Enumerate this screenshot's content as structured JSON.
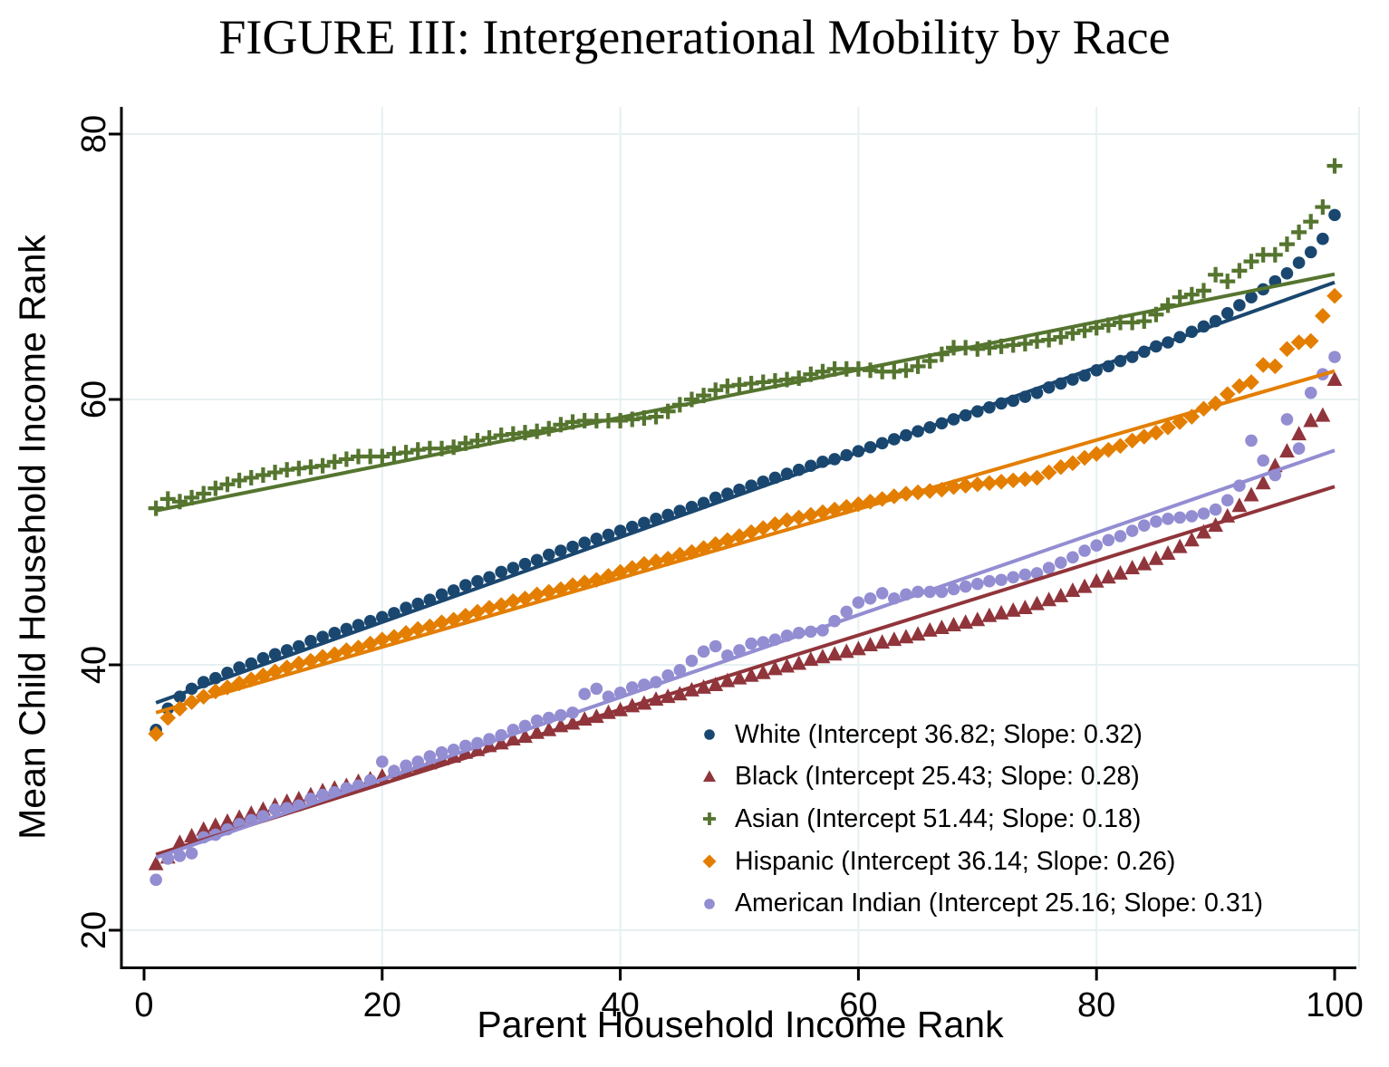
{
  "title": "FIGURE III: Intergenerational Mobility by Race",
  "axes": {
    "x_label": "Parent Household Income Rank",
    "y_label": "Mean Child Household Income Rank",
    "x_ticks": [
      0,
      20,
      40,
      60,
      80,
      100
    ],
    "y_ticks": [
      20,
      40,
      60,
      80
    ]
  },
  "colors": {
    "background": "#ffffff",
    "grid": "#e6f0f1",
    "axis": "#000000",
    "text": "#000000",
    "white_series": "#1a476f",
    "black_series": "#90353b",
    "asian_series": "#55752f",
    "hispanic_series": "#e37e00",
    "american_indian_series": "#938dd2"
  },
  "legend": {
    "position": "inside-bottom-right",
    "frame": false
  },
  "chart_data": {
    "type": "scatter",
    "title": "FIGURE III: Intergenerational Mobility by Race",
    "xlabel": "Parent Household Income Rank",
    "ylabel": "Mean Child Household Income Rank",
    "xlim": [
      -2,
      102.5
    ],
    "ylim": [
      17.5,
      82
    ],
    "grid": true,
    "x_min": 1,
    "x_max": 100,
    "x_step": 1,
    "series": [
      {
        "name": "White",
        "legend_label": "White (Intercept 36.82; Slope: 0.32)",
        "marker": "circle",
        "color": "#1a476f",
        "intercept": 36.82,
        "slope": 0.32,
        "values": [
          35.1,
          36.7,
          37.6,
          38.2,
          38.7,
          39.0,
          39.4,
          39.8,
          40.1,
          40.5,
          40.8,
          41.1,
          41.4,
          41.8,
          42.1,
          42.4,
          42.7,
          43.0,
          43.3,
          43.6,
          43.9,
          44.3,
          44.6,
          44.9,
          45.3,
          45.6,
          46.0,
          46.3,
          46.6,
          47.0,
          47.3,
          47.6,
          47.9,
          48.3,
          48.6,
          48.9,
          49.2,
          49.5,
          49.8,
          50.1,
          50.4,
          50.7,
          51.0,
          51.3,
          51.6,
          51.9,
          52.2,
          52.6,
          52.9,
          53.2,
          53.5,
          53.8,
          54.1,
          54.4,
          54.7,
          55.0,
          55.3,
          55.5,
          55.8,
          56.1,
          56.4,
          56.7,
          57.0,
          57.3,
          57.6,
          57.9,
          58.2,
          58.5,
          58.8,
          59.1,
          59.4,
          59.7,
          59.9,
          60.2,
          60.5,
          60.9,
          61.2,
          61.5,
          61.8,
          62.2,
          62.5,
          62.9,
          63.2,
          63.6,
          64.0,
          64.3,
          64.7,
          65.1,
          65.5,
          65.9,
          66.5,
          67.1,
          67.7,
          68.3,
          68.9,
          69.5,
          70.3,
          71.1,
          72.1,
          73.9
        ]
      },
      {
        "name": "Black",
        "legend_label": "Black (Intercept 25.43; Slope: 0.28)",
        "marker": "triangle",
        "color": "#90353b",
        "intercept": 25.43,
        "slope": 0.28,
        "values": [
          25.0,
          25.5,
          26.6,
          27.1,
          27.6,
          27.9,
          28.2,
          28.5,
          28.8,
          29.1,
          29.4,
          29.7,
          29.9,
          30.2,
          30.5,
          30.7,
          30.9,
          31.2,
          31.4,
          31.6,
          31.9,
          32.1,
          32.4,
          32.6,
          32.9,
          33.1,
          33.4,
          33.6,
          33.9,
          34.1,
          34.4,
          34.6,
          34.9,
          35.1,
          35.4,
          35.6,
          35.9,
          36.1,
          36.4,
          36.6,
          36.9,
          37.1,
          37.4,
          37.6,
          37.8,
          38.1,
          38.3,
          38.5,
          38.8,
          39.0,
          39.2,
          39.4,
          39.7,
          39.9,
          40.1,
          40.4,
          40.6,
          40.8,
          41.0,
          41.2,
          41.5,
          41.7,
          41.9,
          42.1,
          42.3,
          42.6,
          42.8,
          43.0,
          43.2,
          43.4,
          43.7,
          43.9,
          44.1,
          44.3,
          44.6,
          44.9,
          45.2,
          45.6,
          45.9,
          46.3,
          46.6,
          46.9,
          47.3,
          47.6,
          48.0,
          48.4,
          48.9,
          49.4,
          50.0,
          50.5,
          51.2,
          52.0,
          52.8,
          53.7,
          55.0,
          56.1,
          57.4,
          58.4,
          58.8,
          61.5
        ]
      },
      {
        "name": "Asian",
        "legend_label": "Asian (Intercept 51.44; Slope: 0.18)",
        "marker": "plus",
        "color": "#55752f",
        "intercept": 51.44,
        "slope": 0.18,
        "values": [
          51.8,
          52.5,
          52.3,
          52.6,
          52.9,
          53.3,
          53.6,
          53.9,
          54.1,
          54.3,
          54.5,
          54.7,
          54.8,
          54.9,
          55.0,
          55.3,
          55.5,
          55.7,
          55.7,
          55.7,
          55.9,
          56.0,
          56.2,
          56.3,
          56.3,
          56.4,
          56.7,
          56.9,
          57.1,
          57.3,
          57.4,
          57.5,
          57.6,
          57.8,
          58.1,
          58.3,
          58.4,
          58.4,
          58.4,
          58.4,
          58.5,
          58.6,
          58.7,
          59.1,
          59.6,
          60.0,
          60.3,
          60.7,
          61.0,
          61.1,
          61.2,
          61.3,
          61.4,
          61.5,
          61.6,
          61.9,
          62.1,
          62.3,
          62.3,
          62.3,
          62.2,
          62.1,
          62.1,
          62.2,
          62.5,
          62.9,
          63.4,
          63.9,
          63.9,
          63.8,
          63.9,
          64.0,
          64.1,
          64.2,
          64.4,
          64.5,
          64.7,
          65.0,
          65.2,
          65.4,
          65.6,
          65.8,
          65.8,
          65.9,
          66.4,
          67.1,
          67.7,
          67.9,
          68.2,
          69.4,
          68.9,
          69.7,
          70.4,
          70.9,
          70.9,
          71.7,
          72.6,
          73.4,
          74.5,
          77.6
        ]
      },
      {
        "name": "Hispanic",
        "legend_label": "Hispanic (Intercept 36.14; Slope: 0.26)",
        "marker": "diamond",
        "color": "#e37e00",
        "intercept": 36.14,
        "slope": 0.26,
        "values": [
          34.8,
          36.0,
          36.7,
          37.2,
          37.6,
          38.0,
          38.3,
          38.6,
          38.9,
          39.2,
          39.5,
          39.8,
          40.1,
          40.3,
          40.6,
          40.8,
          41.1,
          41.3,
          41.6,
          41.9,
          42.1,
          42.4,
          42.7,
          42.9,
          43.2,
          43.4,
          43.7,
          44.0,
          44.3,
          44.5,
          44.8,
          45.0,
          45.3,
          45.5,
          45.7,
          46.0,
          46.2,
          46.4,
          46.7,
          47.0,
          47.3,
          47.6,
          47.8,
          48.0,
          48.3,
          48.5,
          48.8,
          49.1,
          49.4,
          49.7,
          50.0,
          50.3,
          50.6,
          50.9,
          51.1,
          51.3,
          51.5,
          51.7,
          51.9,
          52.1,
          52.3,
          52.5,
          52.7,
          52.9,
          53.0,
          53.1,
          53.2,
          53.4,
          53.5,
          53.6,
          53.7,
          53.8,
          53.9,
          54.0,
          54.1,
          54.5,
          54.9,
          55.2,
          55.6,
          55.9,
          56.2,
          56.5,
          56.9,
          57.2,
          57.5,
          57.9,
          58.3,
          58.7,
          59.3,
          59.7,
          60.4,
          61.0,
          61.3,
          62.6,
          62.5,
          63.8,
          64.3,
          64.4,
          66.3,
          67.8
        ]
      },
      {
        "name": "American Indian",
        "legend_label": "American Indian (Intercept 25.16; Slope: 0.31)",
        "marker": "circle",
        "color": "#938dd2",
        "intercept": 25.16,
        "slope": 0.31,
        "values": [
          23.8,
          25.4,
          25.6,
          25.8,
          27.0,
          27.2,
          27.6,
          28.0,
          28.3,
          28.6,
          29.1,
          29.2,
          29.4,
          29.9,
          30.2,
          30.4,
          30.7,
          30.9,
          31.3,
          32.7,
          32.0,
          32.4,
          32.7,
          33.1,
          33.4,
          33.6,
          33.9,
          34.1,
          34.4,
          34.7,
          35.1,
          35.4,
          35.8,
          36.0,
          36.2,
          36.4,
          37.8,
          38.2,
          37.6,
          37.9,
          38.3,
          38.5,
          38.7,
          39.2,
          39.6,
          40.3,
          41.0,
          41.4,
          40.7,
          41.1,
          41.6,
          41.7,
          41.9,
          42.2,
          42.4,
          42.5,
          42.6,
          43.3,
          44.0,
          44.7,
          45.0,
          45.4,
          45.0,
          45.3,
          45.5,
          45.5,
          45.5,
          45.7,
          45.9,
          46.1,
          46.3,
          46.4,
          46.6,
          46.8,
          46.9,
          47.3,
          47.7,
          48.1,
          48.6,
          49.0,
          49.4,
          49.7,
          50.1,
          50.5,
          50.8,
          51.0,
          51.1,
          51.2,
          51.4,
          51.7,
          52.4,
          53.5,
          56.9,
          55.4,
          54.3,
          58.5,
          56.3,
          60.5,
          61.9,
          63.2
        ]
      }
    ]
  }
}
